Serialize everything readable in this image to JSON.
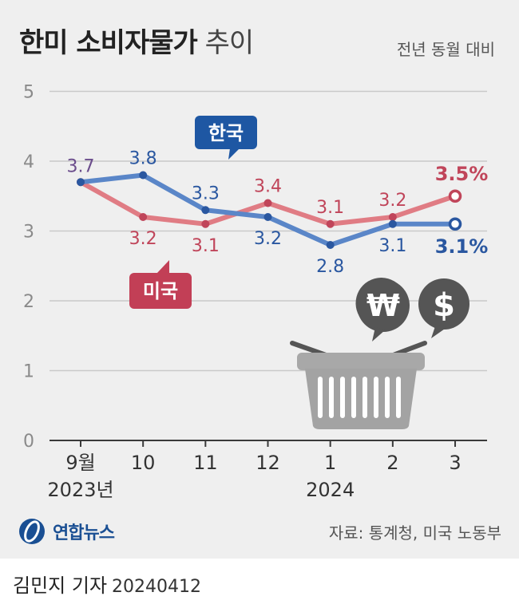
{
  "header": {
    "title_bold": "한미 소비자물가",
    "title_light": "추이",
    "unit": "전년 동월 대비"
  },
  "source": "자료: 통계청, 미국 노동부",
  "brand": "연합뉴스",
  "byline": {
    "author": "김민지 기자",
    "date": "20240412"
  },
  "chart_data": {
    "type": "line",
    "title": "한미 소비자물가 추이",
    "categories": [
      "9월",
      "10",
      "11",
      "12",
      "1",
      "2",
      "3"
    ],
    "year_labels": [
      {
        "index": 0,
        "text": "2023년"
      },
      {
        "index": 4,
        "text": "2024"
      }
    ],
    "ylim": [
      0,
      5
    ],
    "yticks": [
      0,
      1,
      2,
      3,
      4,
      5
    ],
    "grid": true,
    "series": [
      {
        "name": "한국",
        "color": "#5a86c8",
        "label_color": "#2a57a0",
        "values": [
          3.7,
          3.8,
          3.3,
          3.2,
          2.8,
          3.1,
          3.1
        ],
        "labels": [
          "3.7",
          "3.8",
          "3.3",
          "3.2",
          "2.8",
          "3.1",
          "3.1%"
        ]
      },
      {
        "name": "미국",
        "color": "#e07c84",
        "label_color": "#c0455a",
        "values": [
          3.7,
          3.2,
          3.1,
          3.4,
          3.1,
          3.2,
          3.5
        ],
        "labels": [
          "3.7",
          "3.2",
          "3.1",
          "3.4",
          "3.1",
          "3.2",
          "3.5%"
        ]
      }
    ],
    "shared_label_color": "#6b4d8c"
  }
}
